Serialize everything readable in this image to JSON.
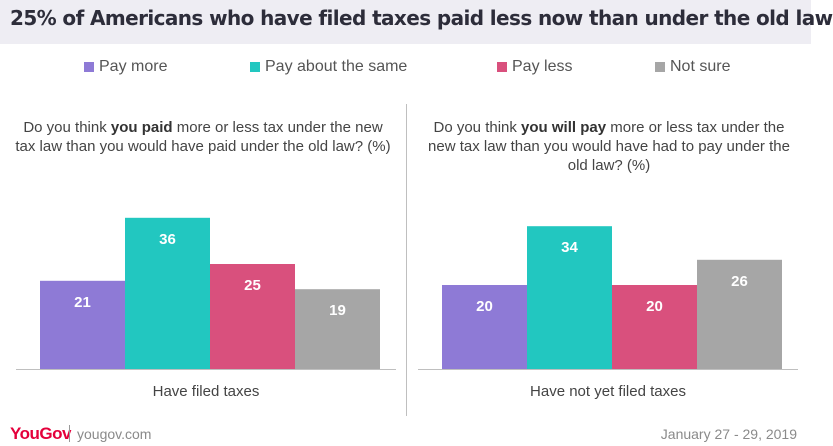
{
  "title": "25% of Americans who have filed taxes paid less now than under the old law",
  "legend": [
    {
      "label": "Pay more",
      "color": "#8e7ad6"
    },
    {
      "label": "Pay about the same",
      "color": "#22c7c0"
    },
    {
      "label": "Pay less",
      "color": "#d9507d"
    },
    {
      "label": "Not sure",
      "color": "#a6a6a6"
    }
  ],
  "left_question": {
    "pre": "Do you think ",
    "bold": "you paid",
    "post": " more or less tax under the new tax law than you would have paid under the old law? (%)"
  },
  "right_question": {
    "pre": "Do you think ",
    "bold": "you will pay",
    "post": " more or less tax under the new tax law than you would have had to pay under the old law? (%)"
  },
  "footer": {
    "logo": "YouGov",
    "site": "yougov.com",
    "date": "January 27 - 29, 2019"
  },
  "chart_data": [
    {
      "type": "bar",
      "group": "Have filed taxes",
      "categories": [
        "Pay more",
        "Pay about the same",
        "Pay less",
        "Not sure"
      ],
      "values": [
        21,
        36,
        25,
        19
      ],
      "colors": [
        "#8e7ad6",
        "#22c7c0",
        "#d9507d",
        "#a6a6a6"
      ],
      "ylim": [
        0,
        42
      ]
    },
    {
      "type": "bar",
      "group": "Have not yet filed taxes",
      "categories": [
        "Pay more",
        "Pay about the same",
        "Pay less",
        "Not sure"
      ],
      "values": [
        20,
        34,
        20,
        26
      ],
      "colors": [
        "#8e7ad6",
        "#22c7c0",
        "#d9507d",
        "#a6a6a6"
      ],
      "ylim": [
        0,
        42
      ]
    }
  ]
}
